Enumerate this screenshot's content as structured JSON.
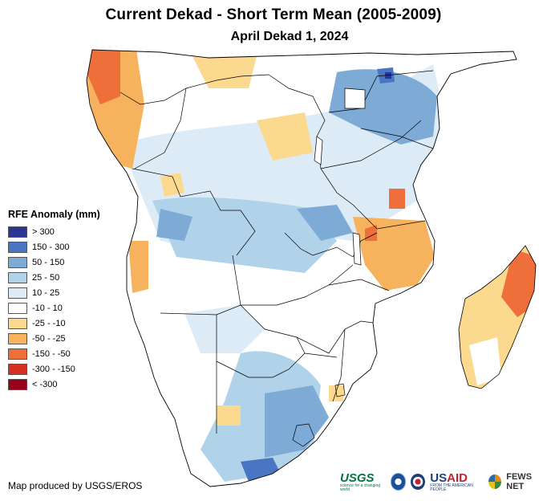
{
  "title": "Current Dekad - Short Term Mean (2005-2009)",
  "subtitle": "April Dekad 1, 2024",
  "legend": {
    "title": "RFE Anomaly (mm)",
    "items": [
      {
        "label": "> 300",
        "color": "#2a3596"
      },
      {
        "label": "150 - 300",
        "color": "#4a75c2"
      },
      {
        "label": "50 - 150",
        "color": "#7eaad6"
      },
      {
        "label": "25 - 50",
        "color": "#b1d3ea"
      },
      {
        "label": "10 - 25",
        "color": "#dcebf6"
      },
      {
        "label": "-10 - 10",
        "color": "#ffffff"
      },
      {
        "label": "-25 - -10",
        "color": "#fbd98e"
      },
      {
        "label": "-50 - -25",
        "color": "#f7b25e"
      },
      {
        "label": "-150 - -50",
        "color": "#ef6f3a"
      },
      {
        "label": "-300 - -150",
        "color": "#d7301f"
      },
      {
        "label": "< -300",
        "color": "#99001a"
      }
    ]
  },
  "credit": "Map produced by USGS/EROS",
  "logos": {
    "usgs": "USGS",
    "usgs_tagline": "science for a changing world",
    "usaid_a": "US",
    "usaid_b": "AID",
    "usaid_tagline": "FROM THE AMERICAN PEOPLE",
    "fews": "FEWS NET"
  },
  "colors": {
    "boundary": "#000000",
    "land_neutral": "#ffffff",
    "water": "#ffffff"
  }
}
